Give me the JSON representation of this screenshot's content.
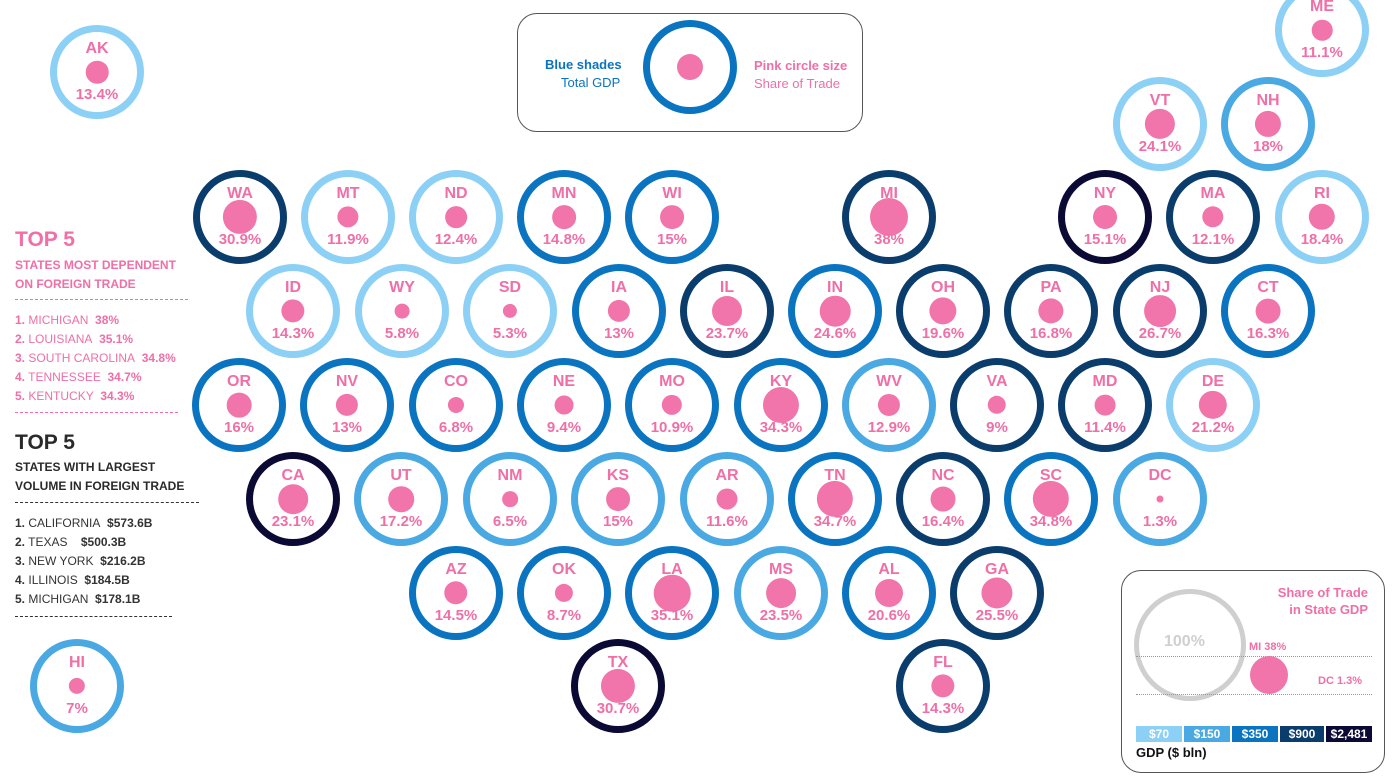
{
  "key": {
    "blue_title": "Blue shades",
    "blue_sub": "Total GDP",
    "pink_title": "Pink circle size",
    "pink_sub": "Share of Trade"
  },
  "top_dependent": {
    "heading": "TOP 5",
    "subtitle_1": "STATES MOST DEPENDENT",
    "subtitle_2": "ON FOREIGN TRADE",
    "items": [
      {
        "rank": "1.",
        "name": "MICHIGAN",
        "value": "38%"
      },
      {
        "rank": "2.",
        "name": "LOUISIANA",
        "value": "35.1%"
      },
      {
        "rank": "3.",
        "name": "SOUTH CAROLINA",
        "value": "34.8%"
      },
      {
        "rank": "4.",
        "name": "TENNESSEE",
        "value": "34.7%"
      },
      {
        "rank": "5.",
        "name": "KENTUCKY",
        "value": "34.3%"
      }
    ]
  },
  "top_volume": {
    "heading": "TOP 5",
    "subtitle_1": "STATES WITH LARGEST",
    "subtitle_2": "VOLUME IN FOREIGN TRADE",
    "items": [
      {
        "rank": "1.",
        "name": "CALIFORNIA",
        "value": "$573.6B"
      },
      {
        "rank": "2.",
        "name": "TEXAS",
        "value": "$500.3B"
      },
      {
        "rank": "3.",
        "name": "NEW YORK",
        "value": "$216.2B"
      },
      {
        "rank": "4.",
        "name": "ILLINOIS",
        "value": "$184.5B"
      },
      {
        "rank": "5.",
        "name": "MICHIGAN",
        "value": "$178.1B"
      }
    ]
  },
  "scale_legend": {
    "title_1": "Share of Trade",
    "title_2": "in State GDP",
    "full_label": "100%",
    "max_label": "MI 38%",
    "min_label": "DC 1.3%",
    "gdp_bins": [
      {
        "label": "$70",
        "color": "#8dd0f5"
      },
      {
        "label": "$150",
        "color": "#4aa9e2"
      },
      {
        "label": "$350",
        "color": "#0a74c0"
      },
      {
        "label": "$900",
        "color": "#0a3c6c"
      },
      {
        "label": "$2,481",
        "color": "#0b0a35"
      }
    ],
    "gdp_title": "GDP ($ bln)"
  },
  "states": [
    {
      "abbr": "AK",
      "share": 13.4,
      "label": "13.4%",
      "tier": 1
    },
    {
      "abbr": "ME",
      "share": 11.1,
      "label": "11.1%",
      "tier": 1
    },
    {
      "abbr": "VT",
      "share": 24.1,
      "label": "24.1%",
      "tier": 1
    },
    {
      "abbr": "NH",
      "share": 18,
      "label": "18%",
      "tier": 2
    },
    {
      "abbr": "WA",
      "share": 30.9,
      "label": "30.9%",
      "tier": 4
    },
    {
      "abbr": "MT",
      "share": 11.9,
      "label": "11.9%",
      "tier": 1
    },
    {
      "abbr": "ND",
      "share": 12.4,
      "label": "12.4%",
      "tier": 1
    },
    {
      "abbr": "MN",
      "share": 14.8,
      "label": "14.8%",
      "tier": 3
    },
    {
      "abbr": "WI",
      "share": 15,
      "label": "15%",
      "tier": 3
    },
    {
      "abbr": "MI",
      "share": 38,
      "label": "38%",
      "tier": 4
    },
    {
      "abbr": "NY",
      "share": 15.1,
      "label": "15.1%",
      "tier": 5
    },
    {
      "abbr": "MA",
      "share": 12.1,
      "label": "12.1%",
      "tier": 4
    },
    {
      "abbr": "RI",
      "share": 18.4,
      "label": "18.4%",
      "tier": 1
    },
    {
      "abbr": "ID",
      "share": 14.3,
      "label": "14.3%",
      "tier": 1
    },
    {
      "abbr": "WY",
      "share": 5.8,
      "label": "5.8%",
      "tier": 1
    },
    {
      "abbr": "SD",
      "share": 5.3,
      "label": "5.3%",
      "tier": 1
    },
    {
      "abbr": "IA",
      "share": 13,
      "label": "13%",
      "tier": 3
    },
    {
      "abbr": "IL",
      "share": 23.7,
      "label": "23.7%",
      "tier": 4
    },
    {
      "abbr": "IN",
      "share": 24.6,
      "label": "24.6%",
      "tier": 3
    },
    {
      "abbr": "OH",
      "share": 19.6,
      "label": "19.6%",
      "tier": 4
    },
    {
      "abbr": "PA",
      "share": 16.8,
      "label": "16.8%",
      "tier": 4
    },
    {
      "abbr": "NJ",
      "share": 26.7,
      "label": "26.7%",
      "tier": 4
    },
    {
      "abbr": "CT",
      "share": 16.3,
      "label": "16.3%",
      "tier": 3
    },
    {
      "abbr": "OR",
      "share": 16,
      "label": "16%",
      "tier": 3
    },
    {
      "abbr": "NV",
      "share": 13,
      "label": "13%",
      "tier": 3
    },
    {
      "abbr": "CO",
      "share": 6.8,
      "label": "6.8%",
      "tier": 3
    },
    {
      "abbr": "NE",
      "share": 9.4,
      "label": "9.4%",
      "tier": 3
    },
    {
      "abbr": "MO",
      "share": 10.9,
      "label": "10.9%",
      "tier": 3
    },
    {
      "abbr": "KY",
      "share": 34.3,
      "label": "34.3%",
      "tier": 3
    },
    {
      "abbr": "WV",
      "share": 12.9,
      "label": "12.9%",
      "tier": 2
    },
    {
      "abbr": "VA",
      "share": 9,
      "label": "9%",
      "tier": 4
    },
    {
      "abbr": "MD",
      "share": 11.4,
      "label": "11.4%",
      "tier": 4
    },
    {
      "abbr": "DE",
      "share": 21.2,
      "label": "21.2%",
      "tier": 1
    },
    {
      "abbr": "CA",
      "share": 23.1,
      "label": "23.1%",
      "tier": 5
    },
    {
      "abbr": "UT",
      "share": 17.2,
      "label": "17.2%",
      "tier": 2
    },
    {
      "abbr": "NM",
      "share": 6.5,
      "label": "6.5%",
      "tier": 2
    },
    {
      "abbr": "KS",
      "share": 15,
      "label": "15%",
      "tier": 2
    },
    {
      "abbr": "AR",
      "share": 11.6,
      "label": "11.6%",
      "tier": 2
    },
    {
      "abbr": "TN",
      "share": 34.7,
      "label": "34.7%",
      "tier": 3
    },
    {
      "abbr": "NC",
      "share": 16.4,
      "label": "16.4%",
      "tier": 4
    },
    {
      "abbr": "SC",
      "share": 34.8,
      "label": "34.8%",
      "tier": 3
    },
    {
      "abbr": "DC",
      "share": 1.3,
      "label": "1.3%",
      "tier": 2
    },
    {
      "abbr": "AZ",
      "share": 14.5,
      "label": "14.5%",
      "tier": 3
    },
    {
      "abbr": "OK",
      "share": 8.7,
      "label": "8.7%",
      "tier": 3
    },
    {
      "abbr": "LA",
      "share": 35.1,
      "label": "35.1%",
      "tier": 3
    },
    {
      "abbr": "MS",
      "share": 23.5,
      "label": "23.5%",
      "tier": 2
    },
    {
      "abbr": "AL",
      "share": 20.6,
      "label": "20.6%",
      "tier": 3
    },
    {
      "abbr": "GA",
      "share": 25.5,
      "label": "25.5%",
      "tier": 4
    },
    {
      "abbr": "HI",
      "share": 7,
      "label": "7%",
      "tier": 2
    },
    {
      "abbr": "TX",
      "share": 30.7,
      "label": "30.7%",
      "tier": 5
    },
    {
      "abbr": "FL",
      "share": 14.3,
      "label": "14.3%",
      "tier": 4
    }
  ],
  "tier_colors": {
    "1": "#8dd0f5",
    "2": "#4aa9e2",
    "3": "#0a74c0",
    "4": "#0a3c6c",
    "5": "#0b0a35"
  },
  "pink": "#f175aa"
}
